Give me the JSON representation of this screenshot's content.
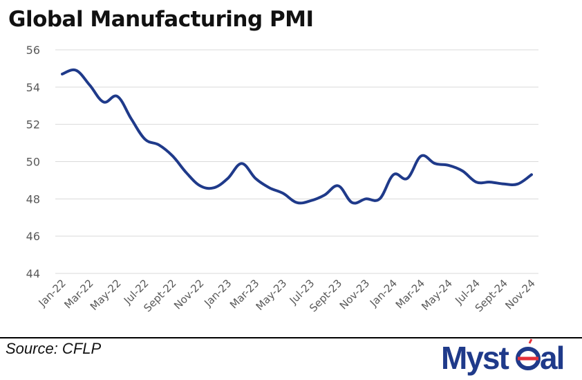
{
  "chart_data": {
    "type": "line",
    "title": "Global Manufacturing PMI",
    "xlabel": "",
    "ylabel": "",
    "ylim": [
      44,
      56
    ],
    "yticks": [
      44,
      46,
      48,
      50,
      52,
      54,
      56
    ],
    "grid": true,
    "legend": "none",
    "x": [
      "Jan-22",
      "Feb-22",
      "Mar-22",
      "Apr-22",
      "May-22",
      "Jun-22",
      "Jul-22",
      "Aug-22",
      "Sept-22",
      "Oct-22",
      "Nov-22",
      "Dec-22",
      "Jan-23",
      "Feb-23",
      "Mar-23",
      "Apr-23",
      "May-23",
      "Jun-23",
      "Jul-23",
      "Aug-23",
      "Sept-23",
      "Oct-23",
      "Nov-23",
      "Dec-23",
      "Jan-24",
      "Feb-24",
      "Mar-24",
      "Apr-24",
      "May-24",
      "Jun-24",
      "Jul-24",
      "Aug-24",
      "Sept-24",
      "Oct-24",
      "Nov-24"
    ],
    "x_tick_labels": [
      "Jan-22",
      "Mar-22",
      "May-22",
      "Jul-22",
      "Sept-22",
      "Nov-22",
      "Jan-23",
      "Mar-23",
      "May-23",
      "Jul-23",
      "Sept-23",
      "Nov-23",
      "Jan-24",
      "Mar-24",
      "May-24",
      "Jul-24",
      "Sept-24",
      "Nov-24"
    ],
    "series": [
      {
        "values": [
          54.7,
          54.9,
          54.1,
          53.2,
          53.5,
          52.3,
          51.2,
          50.9,
          50.3,
          49.4,
          48.7,
          48.6,
          49.1,
          49.9,
          49.1,
          48.6,
          48.3,
          47.8,
          47.9,
          48.2,
          48.7,
          47.8,
          48.0,
          48.0,
          49.3,
          49.1,
          50.3,
          49.9,
          49.8,
          49.5,
          48.9,
          48.9,
          48.8,
          48.8,
          49.3
        ],
        "color": "#1f3a8a"
      }
    ]
  },
  "source": "Source: CFLP",
  "logo": {
    "text": "Mysteel",
    "color": "#1f3a8a",
    "accent": "#e6303a"
  }
}
